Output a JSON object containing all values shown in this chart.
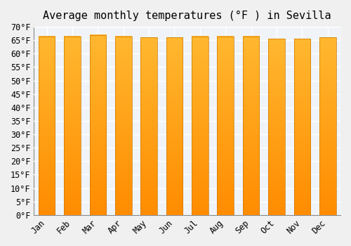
{
  "title": "Average monthly temperatures (°F ) in Sevilla",
  "months": [
    "Jan",
    "Feb",
    "Mar",
    "Apr",
    "May",
    "Jun",
    "Jul",
    "Aug",
    "Sep",
    "Oct",
    "Nov",
    "Dec"
  ],
  "values": [
    66.5,
    66.5,
    67.0,
    66.5,
    66.0,
    66.0,
    66.5,
    66.5,
    66.5,
    65.5,
    65.5,
    66.0
  ],
  "bar_color_gradient_top": "#FFB830",
  "bar_color_gradient_bottom": "#FF8C00",
  "ylim": [
    0,
    70
  ],
  "ytick_step": 5,
  "background_color": "#f0f0f0",
  "plot_bg_color": "#f0f4f8",
  "grid_color": "#ffffff",
  "title_fontsize": 11,
  "tick_fontsize": 8.5,
  "bar_edge_color": "#cc7700"
}
